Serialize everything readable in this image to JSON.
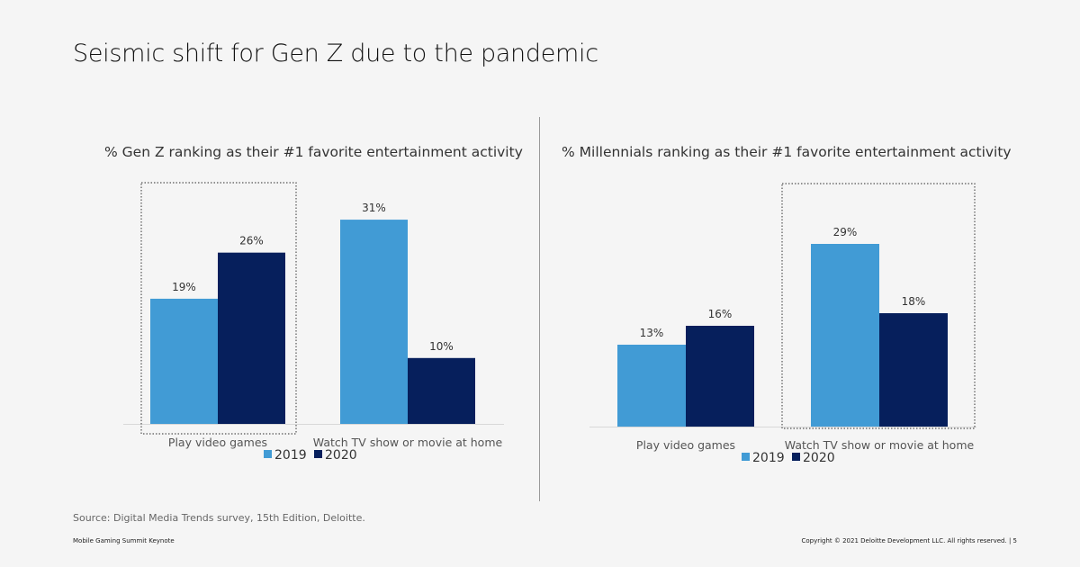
{
  "title": "Seismic shift for Gen Z due to the pandemic",
  "source": "Source: Digital Media Trends survey, 15th Edition, Deloitte.",
  "footer_left": "Mobile Gaming Summit Keynote",
  "footer_right": "Copyright © 2021 Deloitte Development LLC. All rights reserved.  |   5",
  "colors": {
    "2019": "#419bd5",
    "2020": "#061f5c"
  },
  "chart_data": [
    {
      "type": "bar",
      "title": "% Gen Z ranking as their #1 favorite entertainment activity",
      "categories": [
        "Play video games",
        "Watch TV show or movie at home"
      ],
      "series": [
        {
          "name": "2019",
          "values": [
            19,
            31
          ],
          "labels": [
            "19%",
            "31%"
          ]
        },
        {
          "name": "2020",
          "values": [
            26,
            10
          ],
          "labels": [
            "26%",
            "10%"
          ]
        }
      ],
      "highlighted_category": "Play video games",
      "legend": "bottom",
      "grid": false
    },
    {
      "type": "bar",
      "title": "% Millennials ranking as their #1 favorite entertainment activity",
      "categories": [
        "Play video games",
        "Watch TV show or movie at home"
      ],
      "series": [
        {
          "name": "2019",
          "values": [
            13,
            29
          ],
          "labels": [
            "13%",
            "29%"
          ]
        },
        {
          "name": "2020",
          "values": [
            16,
            18
          ],
          "labels": [
            "16%",
            "18%"
          ]
        }
      ],
      "highlighted_category": "Watch TV show or movie at home",
      "legend": "bottom",
      "grid": false
    }
  ]
}
